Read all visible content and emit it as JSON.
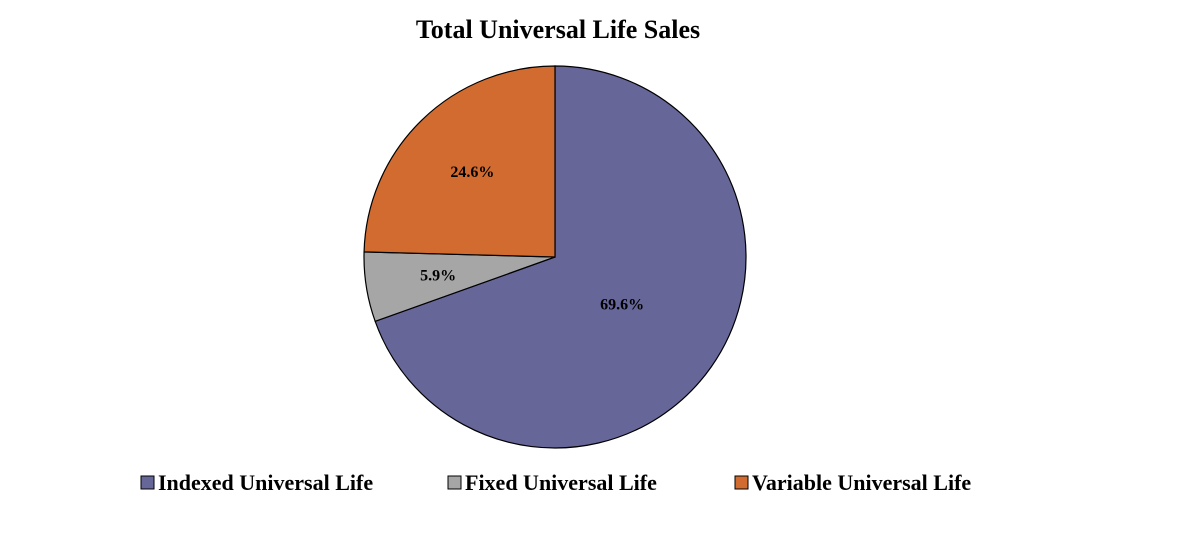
{
  "chart_data": {
    "type": "pie",
    "title": "Total Universal Life Sales",
    "legend_position": "bottom",
    "slices": [
      {
        "name": "Indexed Universal Life",
        "value": 69.6,
        "label": "69.6%",
        "color": "#666699"
      },
      {
        "name": "Fixed Universal Life",
        "value": 5.9,
        "label": "5.9%",
        "color": "#A6A6A6"
      },
      {
        "name": "Variable Universal Life",
        "value": 24.6,
        "label": "24.6%",
        "color": "#D16B30"
      }
    ]
  }
}
